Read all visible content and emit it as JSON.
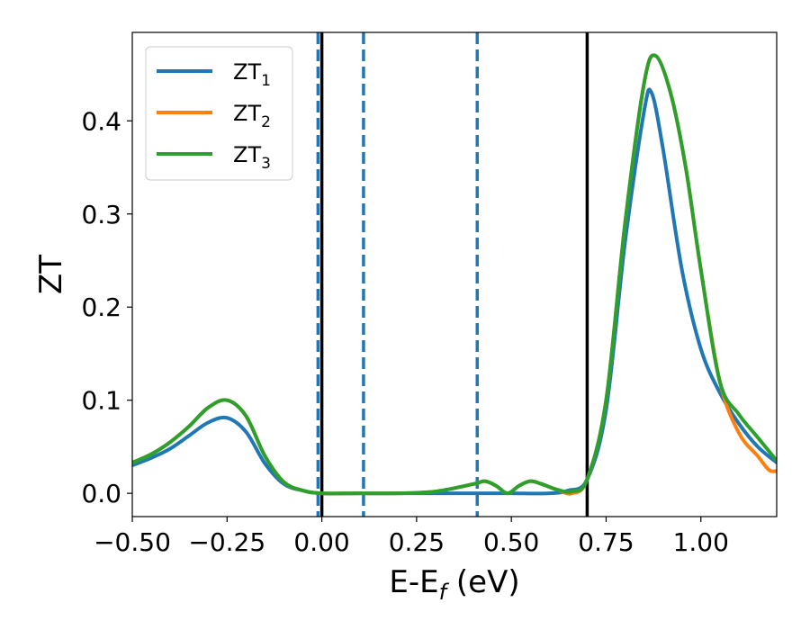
{
  "chart_data": {
    "type": "line",
    "title": "",
    "xlabel": "E-E",
    "xlabel_sub": "f",
    "xlabel_unit": " (eV)",
    "ylabel": "ZT",
    "xlim": [
      -0.5,
      1.2
    ],
    "ylim": [
      -0.025,
      0.495
    ],
    "xticks": [
      -0.5,
      -0.25,
      0.0,
      0.25,
      0.5,
      0.75,
      1.0
    ],
    "xtick_labels": [
      "−0.50",
      "−0.25",
      "0.00",
      "0.25",
      "0.50",
      "0.75",
      "1.00"
    ],
    "yticks": [
      0.0,
      0.1,
      0.2,
      0.3,
      0.4
    ],
    "ytick_labels": [
      "0.0",
      "0.1",
      "0.2",
      "0.3",
      "0.4"
    ],
    "grid": false,
    "legend_position": "top-left",
    "vlines_solid": [
      0.0,
      0.7
    ],
    "vlines_dashed": [
      -0.01,
      0.11,
      0.41
    ],
    "series": [
      {
        "name": "ZT",
        "sub": "1",
        "color": "#1f77b4",
        "x": [
          -0.5,
          -0.45,
          -0.4,
          -0.35,
          -0.3,
          -0.25,
          -0.2,
          -0.15,
          -0.1,
          -0.05,
          0.0,
          0.1,
          0.2,
          0.3,
          0.4,
          0.5,
          0.6,
          0.65,
          0.7,
          0.75,
          0.8,
          0.85,
          0.87,
          0.9,
          0.95,
          1.0,
          1.05,
          1.1,
          1.15,
          1.2
        ],
        "y": [
          0.03,
          0.038,
          0.048,
          0.062,
          0.076,
          0.081,
          0.066,
          0.032,
          0.01,
          0.003,
          0.0,
          0.0,
          0.0,
          0.0,
          0.0,
          0.0,
          0.0,
          0.003,
          0.015,
          0.09,
          0.27,
          0.41,
          0.43,
          0.37,
          0.24,
          0.155,
          0.108,
          0.075,
          0.05,
          0.033
        ]
      },
      {
        "name": "ZT",
        "sub": "2",
        "color": "#ff7f0e",
        "x": [
          -0.5,
          -0.45,
          -0.4,
          -0.35,
          -0.3,
          -0.25,
          -0.2,
          -0.15,
          -0.1,
          -0.05,
          0.0,
          0.1,
          0.2,
          0.3,
          0.4,
          0.43,
          0.46,
          0.49,
          0.52,
          0.55,
          0.58,
          0.62,
          0.66,
          0.7,
          0.75,
          0.8,
          0.85,
          0.88,
          0.92,
          0.96,
          1.0,
          1.05,
          1.1,
          1.15,
          1.18,
          1.2
        ],
        "y": [
          0.033,
          0.042,
          0.055,
          0.072,
          0.092,
          0.1,
          0.083,
          0.04,
          0.012,
          0.003,
          0.0,
          0.0,
          0.0,
          0.002,
          0.01,
          0.013,
          0.008,
          0.0,
          0.008,
          0.013,
          0.01,
          0.004,
          0.0,
          0.015,
          0.1,
          0.29,
          0.44,
          0.47,
          0.43,
          0.35,
          0.24,
          0.12,
          0.065,
          0.04,
          0.025,
          0.024
        ]
      },
      {
        "name": "ZT",
        "sub": "3",
        "color": "#2ca02c",
        "x": [
          -0.5,
          -0.45,
          -0.4,
          -0.35,
          -0.3,
          -0.25,
          -0.2,
          -0.15,
          -0.1,
          -0.05,
          0.0,
          0.1,
          0.2,
          0.3,
          0.4,
          0.43,
          0.46,
          0.49,
          0.52,
          0.55,
          0.58,
          0.62,
          0.66,
          0.7,
          0.75,
          0.8,
          0.85,
          0.88,
          0.92,
          0.96,
          1.0,
          1.05,
          1.1,
          1.15,
          1.2
        ],
        "y": [
          0.033,
          0.042,
          0.055,
          0.072,
          0.092,
          0.1,
          0.083,
          0.04,
          0.012,
          0.003,
          0.0,
          0.0,
          0.0,
          0.002,
          0.01,
          0.013,
          0.008,
          0.0,
          0.008,
          0.013,
          0.01,
          0.004,
          0.002,
          0.015,
          0.1,
          0.29,
          0.44,
          0.47,
          0.43,
          0.35,
          0.24,
          0.12,
          0.085,
          0.06,
          0.035
        ]
      }
    ]
  }
}
